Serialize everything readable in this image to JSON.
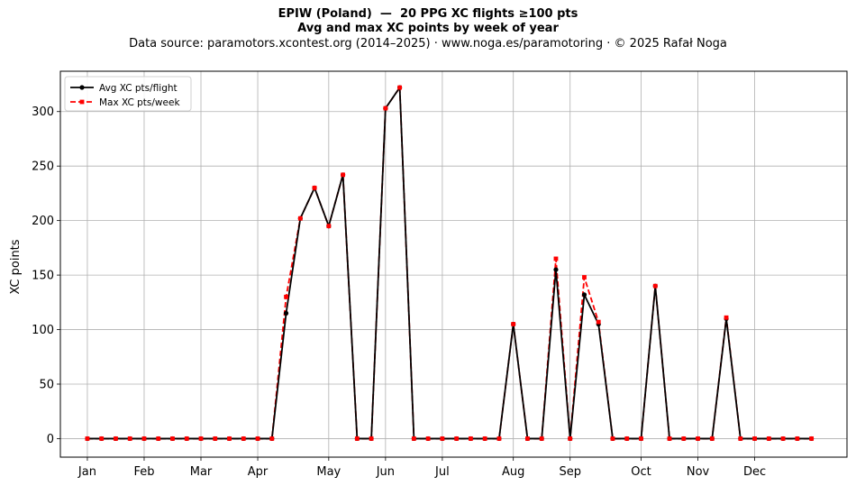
{
  "header": {
    "title": "EPIW (Poland)  —  20 PPG XC flights ≥100 pts",
    "subtitle": "Avg and max XC points by week of year",
    "source": "Data source: paramotors.xcontest.org (2014–2025)  ·  www.noga.es/paramotoring  ·  © 2025 Rafał Noga"
  },
  "chart_data": {
    "type": "line",
    "title": "EPIW (Poland)  —  20 PPG XC flights ≥100 pts",
    "subtitle": "Avg and max XC points by week of year",
    "xlabel": "",
    "ylabel": "XC points",
    "x": [
      1,
      2,
      3,
      4,
      5,
      6,
      7,
      8,
      9,
      10,
      11,
      12,
      13,
      14,
      15,
      16,
      17,
      18,
      19,
      20,
      21,
      22,
      23,
      24,
      25,
      26,
      27,
      28,
      29,
      30,
      31,
      32,
      33,
      34,
      35,
      36,
      37,
      38,
      39,
      40,
      41,
      42,
      43,
      44,
      45,
      46,
      47,
      48,
      49,
      50,
      51,
      52
    ],
    "xlim": [
      -0.9,
      54.5
    ],
    "ylim": [
      -17,
      337
    ],
    "x_ticks": [
      {
        "label": "Jan",
        "x": 1
      },
      {
        "label": "Feb",
        "x": 5
      },
      {
        "label": "Mar",
        "x": 9
      },
      {
        "label": "Apr",
        "x": 13
      },
      {
        "label": "May",
        "x": 18
      },
      {
        "label": "Jun",
        "x": 22
      },
      {
        "label": "Jul",
        "x": 26
      },
      {
        "label": "Aug",
        "x": 31
      },
      {
        "label": "Sep",
        "x": 35
      },
      {
        "label": "Oct",
        "x": 40
      },
      {
        "label": "Nov",
        "x": 44
      },
      {
        "label": "Dec",
        "x": 48
      }
    ],
    "y_ticks": [
      0,
      50,
      100,
      150,
      200,
      250,
      300
    ],
    "grid": true,
    "legend": "top-left",
    "series": [
      {
        "name": "Avg XC pts/flight",
        "color": "#000000",
        "style": "solid-circle",
        "values": [
          0,
          0,
          0,
          0,
          0,
          0,
          0,
          0,
          0,
          0,
          0,
          0,
          0,
          0,
          115,
          202,
          230,
          195,
          242,
          0,
          0,
          303,
          322,
          0,
          0,
          0,
          0,
          0,
          0,
          0,
          105,
          0,
          0,
          155,
          0,
          132,
          105,
          0,
          0,
          0,
          140,
          0,
          0,
          0,
          0,
          110,
          0,
          0,
          0,
          0,
          0,
          0
        ]
      },
      {
        "name": "Max XC pts/week",
        "color": "#ff0000",
        "style": "dashed-square",
        "values": [
          0,
          0,
          0,
          0,
          0,
          0,
          0,
          0,
          0,
          0,
          0,
          0,
          0,
          0,
          130,
          202,
          230,
          195,
          242,
          0,
          0,
          303,
          322,
          0,
          0,
          0,
          0,
          0,
          0,
          0,
          105,
          0,
          0,
          165,
          0,
          148,
          107,
          0,
          0,
          0,
          140,
          0,
          0,
          0,
          0,
          111,
          0,
          0,
          0,
          0,
          0,
          0
        ]
      }
    ]
  }
}
